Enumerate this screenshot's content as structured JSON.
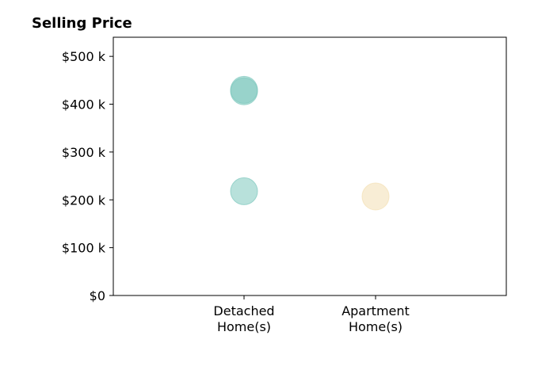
{
  "chart_data": {
    "type": "scatter",
    "title": "Selling Price",
    "xlabel": "",
    "ylabel": "",
    "categories": [
      [
        "Detached",
        "Home(s)"
      ],
      [
        "Apartment",
        "Home(s)"
      ]
    ],
    "ylim": [
      0,
      540000
    ],
    "yticks": [
      {
        "value": 0,
        "label": "$0"
      },
      {
        "value": 100000,
        "label": "$100 k"
      },
      {
        "value": 200000,
        "label": "$200 k"
      },
      {
        "value": 300000,
        "label": "$300 k"
      },
      {
        "value": 400000,
        "label": "$400 k"
      },
      {
        "value": 500000,
        "label": "$500 k"
      }
    ],
    "grid": false,
    "points": [
      {
        "category": 0,
        "y": 430000,
        "color": "#7ec8bd"
      },
      {
        "category": 0,
        "y": 427000,
        "color": "#7ec8bd"
      },
      {
        "category": 0,
        "y": 218000,
        "color": "#7ec8bd"
      },
      {
        "category": 1,
        "y": 207000,
        "color": "#f3dfb3"
      }
    ]
  }
}
